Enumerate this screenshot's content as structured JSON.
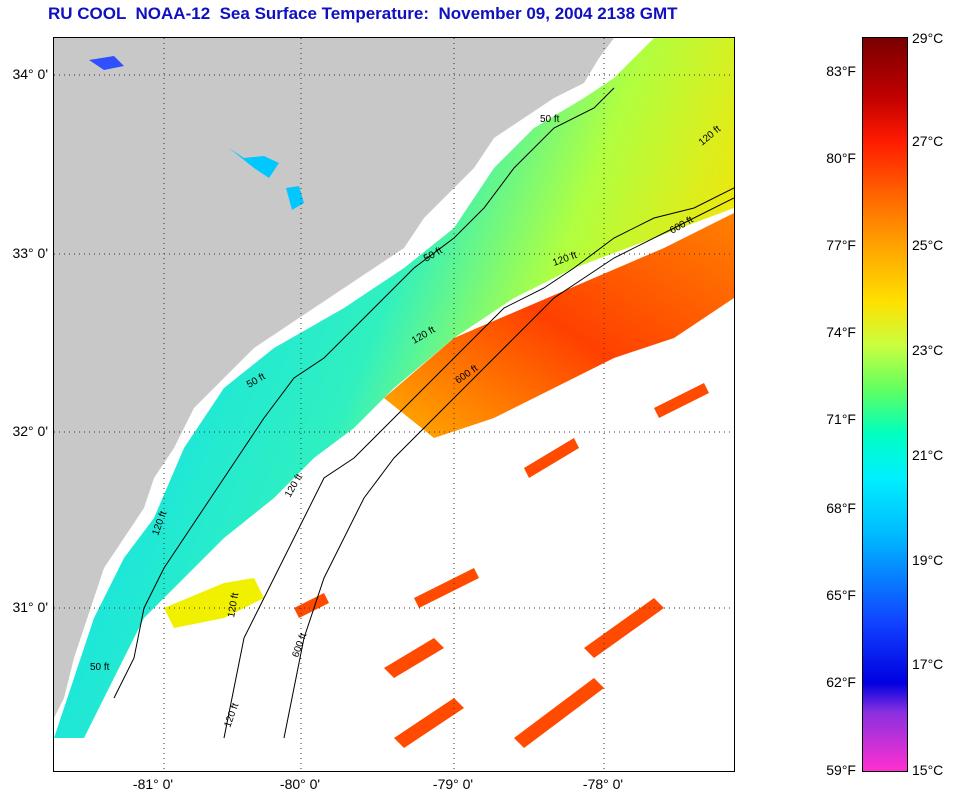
{
  "title": "RU COOL  NOAA-12  Sea Surface Temperature:  November 09, 2004 2138 GMT",
  "map": {
    "lat_labels": [
      "34° 0'",
      "33° 0'",
      "32° 0'",
      "31° 0'"
    ],
    "lon_labels": [
      "-81° 0'",
      "-80° 0'",
      "-79° 0'",
      "-78° 0'"
    ],
    "contour_labels": [
      "50 ft",
      "120 ft",
      "600 ft",
      "120 ft",
      "50 ft",
      "600 ft",
      "120 ft",
      "120 ft",
      "600 ft",
      "120 ft",
      "50 ft",
      "120 ft",
      "50 ft",
      "120 ft"
    ],
    "colors": {
      "land": "#c8c8c8",
      "cloud": "#ffffff",
      "nearshore": "#00e8ff",
      "gulfstream": "#ff3000"
    }
  },
  "colorbar": {
    "fahrenheit": [
      "83°F",
      "80°F",
      "77°F",
      "74°F",
      "71°F",
      "68°F",
      "65°F",
      "62°F",
      "59°F"
    ],
    "celsius": [
      "29°C",
      "27°C",
      "25°C",
      "23°C",
      "21°C",
      "19°C",
      "17°C",
      "15°C"
    ]
  }
}
